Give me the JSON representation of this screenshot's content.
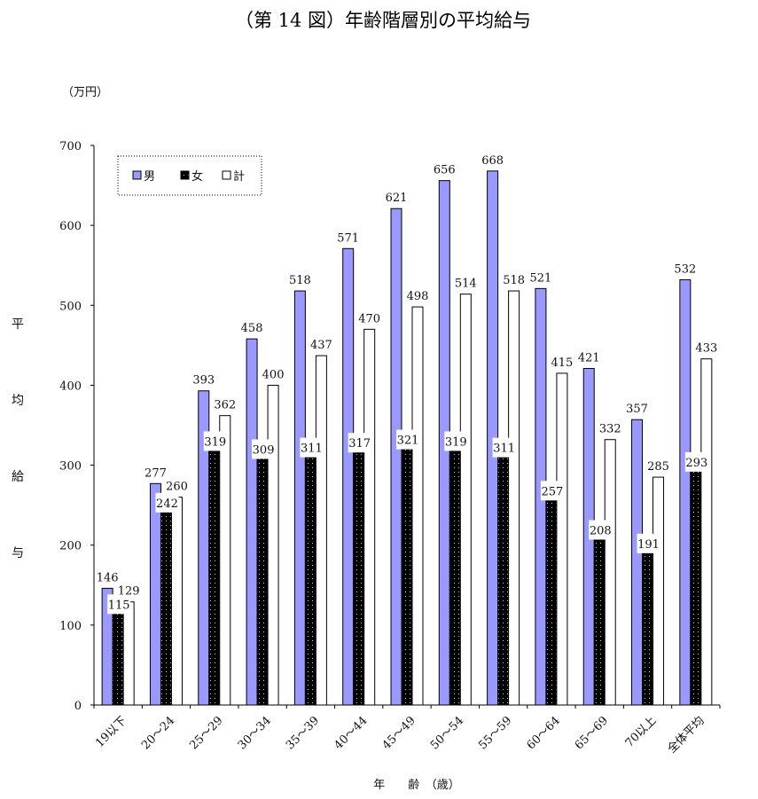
{
  "chart_data": {
    "type": "bar",
    "title": "（第 14 図）年齢階層別の平均給与",
    "unit_label": "（万円）",
    "ylabel": "平均給与",
    "xlabel": "年　　齢　（歳）",
    "ylim": [
      0,
      700
    ],
    "yticks": [
      0,
      100,
      200,
      300,
      400,
      500,
      600,
      700
    ],
    "legend_position": "top-left",
    "grid": false,
    "categories": [
      "19以下",
      "20～24",
      "25～29",
      "30～34",
      "35～39",
      "40～44",
      "45～49",
      "50～54",
      "55～59",
      "60～64",
      "65～69",
      "70以上",
      "全体平均"
    ],
    "series": [
      {
        "name": "男",
        "color": "#9999ff",
        "values": [
          146,
          277,
          393,
          458,
          518,
          571,
          621,
          656,
          668,
          521,
          421,
          357,
          532
        ]
      },
      {
        "name": "女",
        "color": "#000000",
        "values": [
          115,
          242,
          319,
          309,
          311,
          317,
          321,
          319,
          311,
          257,
          208,
          191,
          293
        ]
      },
      {
        "name": "計",
        "color": "#ffffff",
        "values": [
          129,
          260,
          362,
          400,
          437,
          470,
          498,
          514,
          518,
          415,
          332,
          285,
          433
        ]
      }
    ]
  }
}
